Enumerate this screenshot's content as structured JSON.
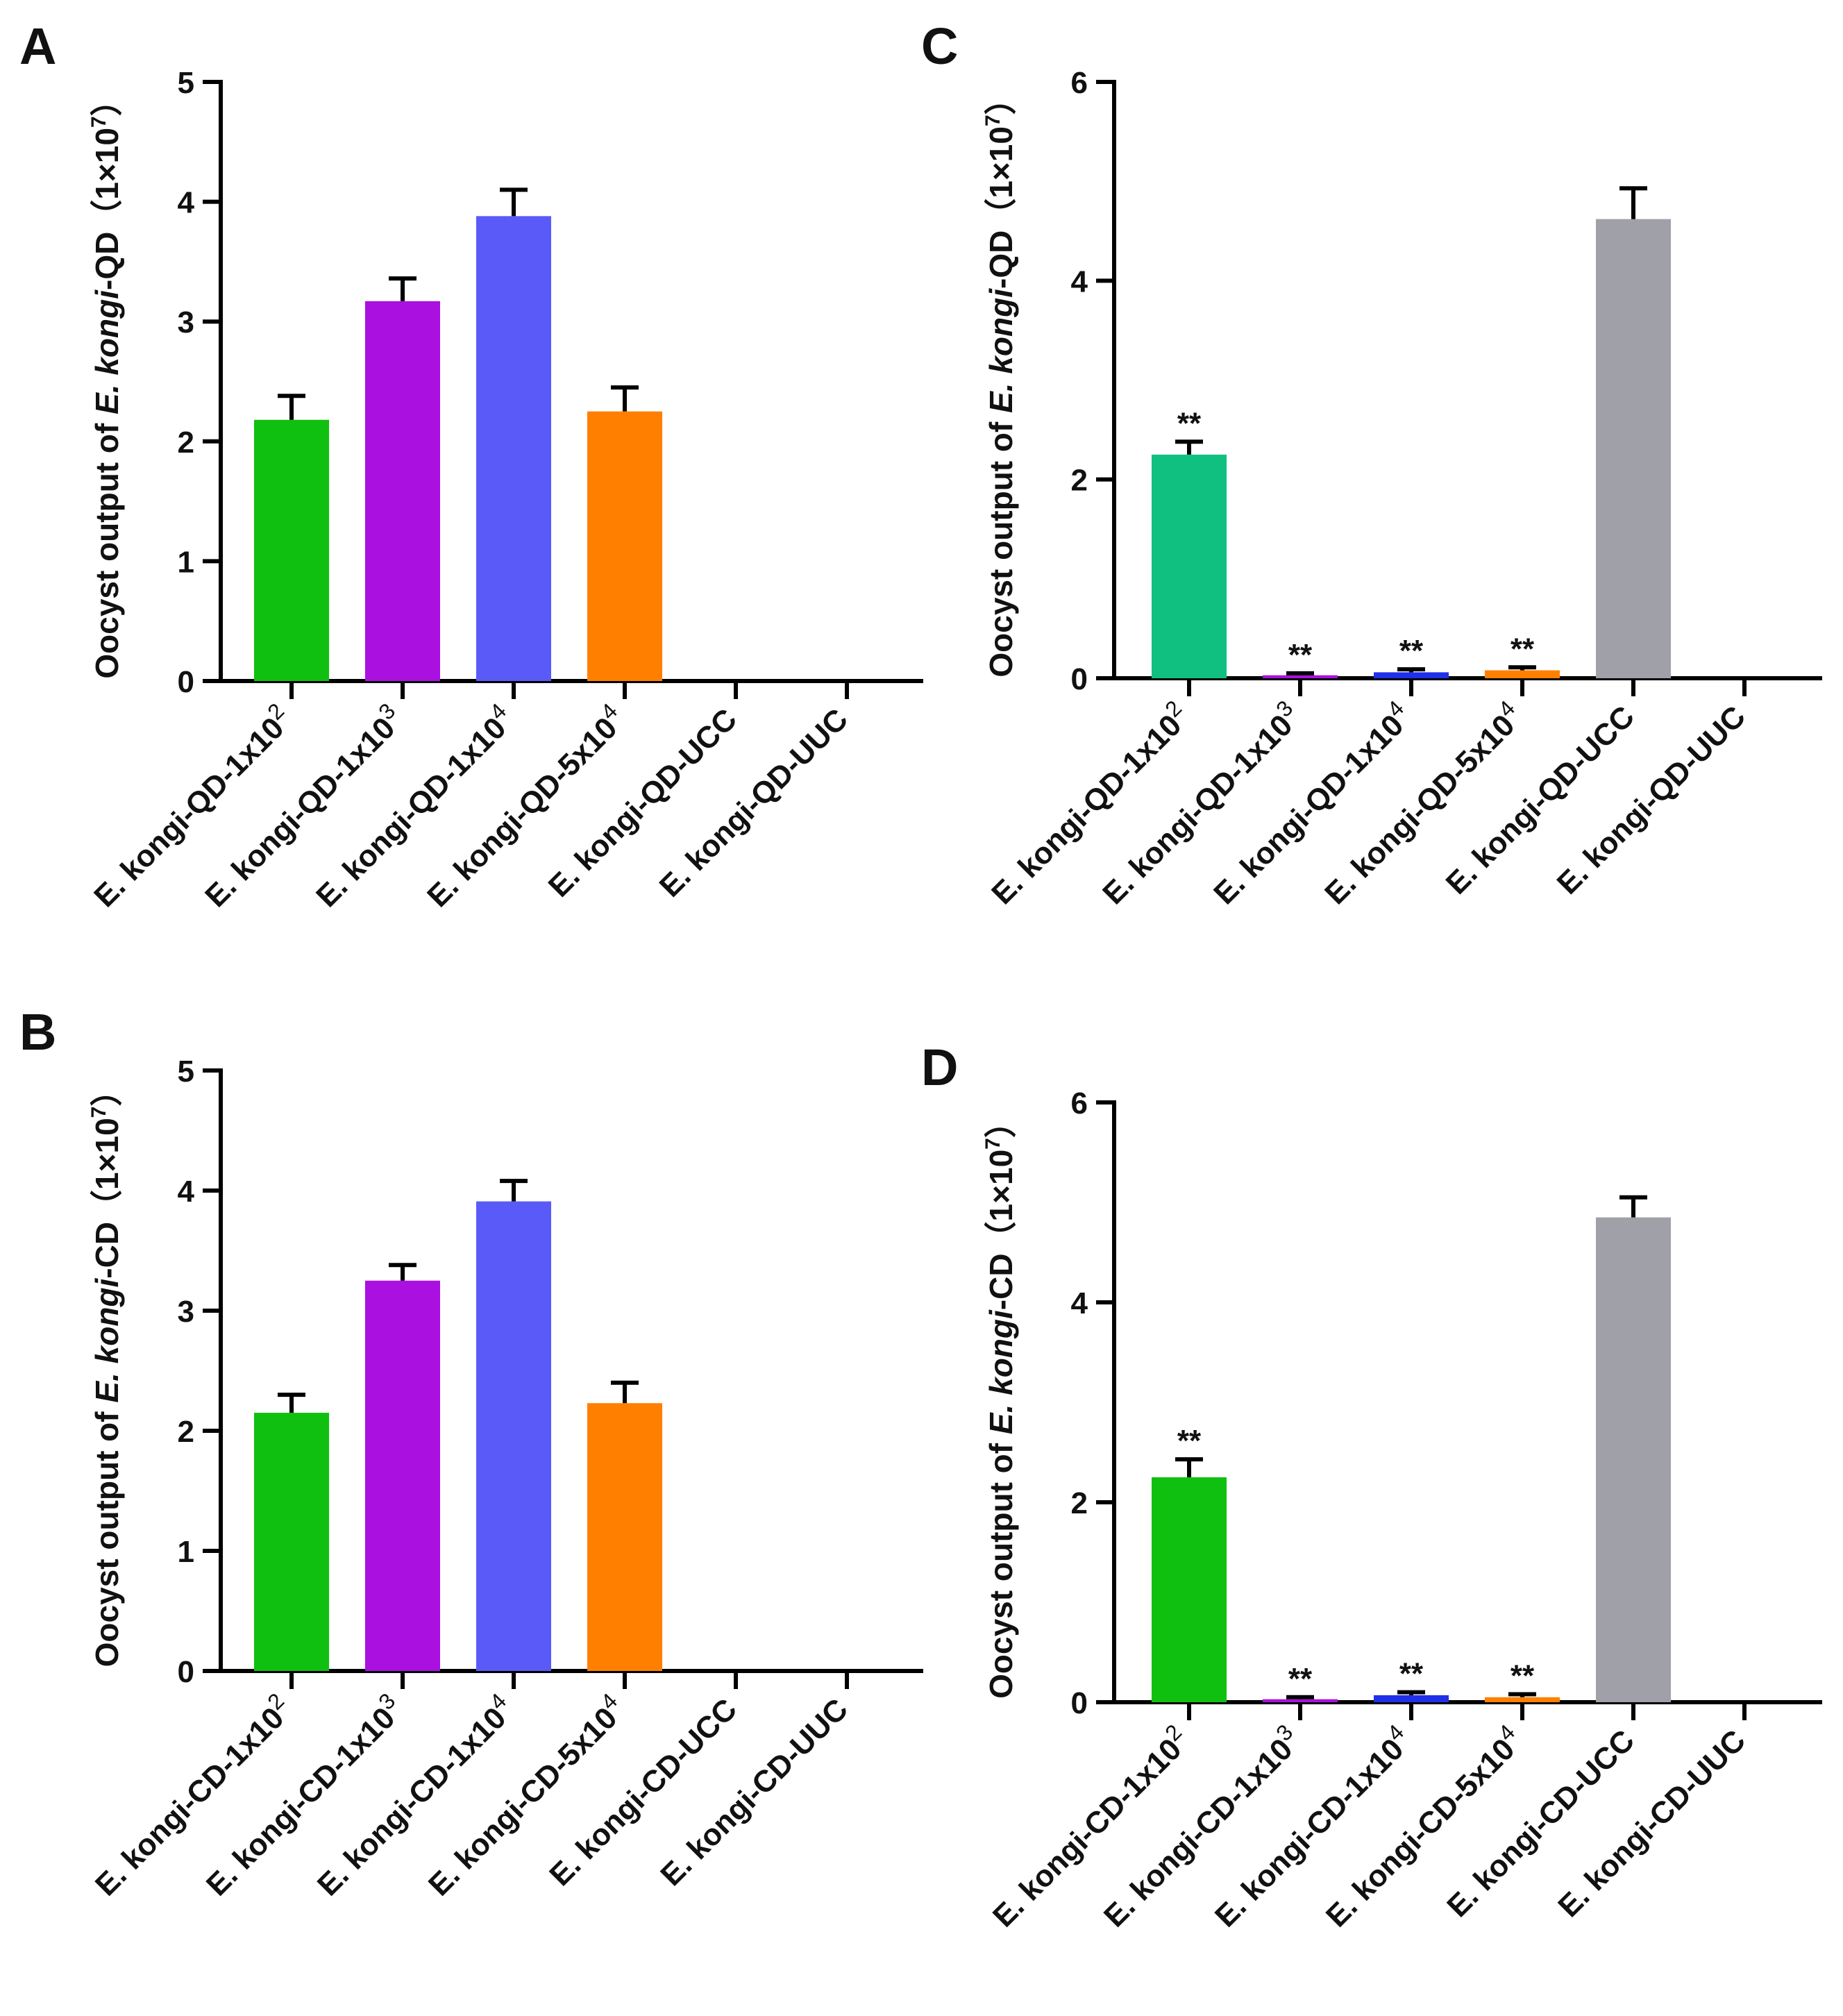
{
  "chart_data": [
    {
      "panel": "A",
      "type": "bar",
      "ylabel": {
        "prefix": "Oocyst output of ",
        "italic": "E. kongi",
        "suffix": "-QD（1×10",
        "sup": "7",
        "close": "）"
      },
      "ylim": [
        0,
        5
      ],
      "yticks": [
        "0",
        "1",
        "2",
        "3",
        "4",
        "5"
      ],
      "categories": [
        {
          "base": "E. kongi-QD-1x10",
          "sup": "2"
        },
        {
          "base": "E. kongi-QD-1x10",
          "sup": "3"
        },
        {
          "base": "E. kongi-QD-1x10",
          "sup": "4"
        },
        {
          "base": "E. kongi-QD-5x10",
          "sup": "4"
        },
        {
          "base": "E. kongi-QD-UCC",
          "sup": ""
        },
        {
          "base": "E. kongi-QD-UUC",
          "sup": ""
        }
      ],
      "values": [
        2.18,
        3.17,
        3.88,
        2.25,
        0,
        0
      ],
      "errors": [
        0.2,
        0.19,
        0.22,
        0.2,
        0,
        0
      ],
      "colors": [
        "#10c010",
        "#aa10e0",
        "#5a5af8",
        "#ff8000",
        "#000000",
        "#000000"
      ],
      "significance": [
        "",
        "",
        "",
        "",
        "",
        ""
      ]
    },
    {
      "panel": "B",
      "type": "bar",
      "ylabel": {
        "prefix": "Oocyst output of ",
        "italic": "E. kongi",
        "suffix": "-CD（1×10",
        "sup": "7",
        "close": "）"
      },
      "ylim": [
        0,
        5
      ],
      "yticks": [
        "0",
        "1",
        "2",
        "3",
        "4",
        "5"
      ],
      "categories": [
        {
          "base": "E. kongi-CD-1x10",
          "sup": "2"
        },
        {
          "base": "E. kongi-CD-1x10",
          "sup": "3"
        },
        {
          "base": "E. kongi-CD-1x10",
          "sup": "4"
        },
        {
          "base": "E. kongi-CD-5x10",
          "sup": "4"
        },
        {
          "base": "E. kongi-CD-UCC",
          "sup": ""
        },
        {
          "base": "E. kongi-CD-UUC",
          "sup": ""
        }
      ],
      "values": [
        2.15,
        3.25,
        3.91,
        2.23,
        0,
        0
      ],
      "errors": [
        0.15,
        0.13,
        0.17,
        0.17,
        0,
        0
      ],
      "colors": [
        "#10c010",
        "#aa10e0",
        "#5a5af8",
        "#ff8000",
        "#000000",
        "#000000"
      ],
      "significance": [
        "",
        "",
        "",
        "",
        "",
        ""
      ]
    },
    {
      "panel": "C",
      "type": "bar",
      "ylabel": {
        "prefix": "Oocyst output of ",
        "italic": "E. kongi",
        "suffix": "-QD（1×10",
        "sup": "7",
        "close": "）"
      },
      "ylim": [
        0,
        6
      ],
      "yticks": [
        "0",
        "2",
        "4",
        "6"
      ],
      "categories": [
        {
          "base": "E. kongi-QD-1x10",
          "sup": "2"
        },
        {
          "base": "E. kongi-QD-1x10",
          "sup": "3"
        },
        {
          "base": "E. kongi-QD-1x10",
          "sup": "4"
        },
        {
          "base": "E. kongi-QD-5x10",
          "sup": "4"
        },
        {
          "base": "E. kongi-QD-UCC",
          "sup": ""
        },
        {
          "base": "E. kongi-QD-UUC",
          "sup": ""
        }
      ],
      "values": [
        2.25,
        0.03,
        0.06,
        0.08,
        4.62,
        0
      ],
      "errors": [
        0.13,
        0.02,
        0.03,
        0.03,
        0.31,
        0
      ],
      "colors": [
        "#10c080",
        "#aa10e0",
        "#2030e8",
        "#ff8000",
        "#a0a0a8",
        "#000000"
      ],
      "significance": [
        "**",
        "**",
        "**",
        "**",
        "",
        ""
      ]
    },
    {
      "panel": "D",
      "type": "bar",
      "ylabel": {
        "prefix": "Oocyst output of ",
        "italic": "E. kongi",
        "suffix": "-CD（1×10",
        "sup": "7",
        "close": "）"
      },
      "ylim": [
        0,
        6
      ],
      "yticks": [
        "0",
        "2",
        "4",
        "6"
      ],
      "categories": [
        {
          "base": "E. kongi-CD-1x10",
          "sup": "2"
        },
        {
          "base": "E. kongi-CD-1x10",
          "sup": "3"
        },
        {
          "base": "E. kongi-CD-1x10",
          "sup": "4"
        },
        {
          "base": "E. kongi-CD-5x10",
          "sup": "4"
        },
        {
          "base": "E. kongi-CD-UCC",
          "sup": ""
        },
        {
          "base": "E. kongi-CD-UUC",
          "sup": ""
        }
      ],
      "values": [
        2.25,
        0.03,
        0.07,
        0.05,
        4.85,
        0
      ],
      "errors": [
        0.18,
        0.02,
        0.03,
        0.03,
        0.2,
        0
      ],
      "colors": [
        "#10c010",
        "#aa10e0",
        "#2030e8",
        "#ff8000",
        "#a0a0a8",
        "#000000"
      ],
      "significance": [
        "**",
        "**",
        "**",
        "**",
        "",
        ""
      ]
    }
  ]
}
